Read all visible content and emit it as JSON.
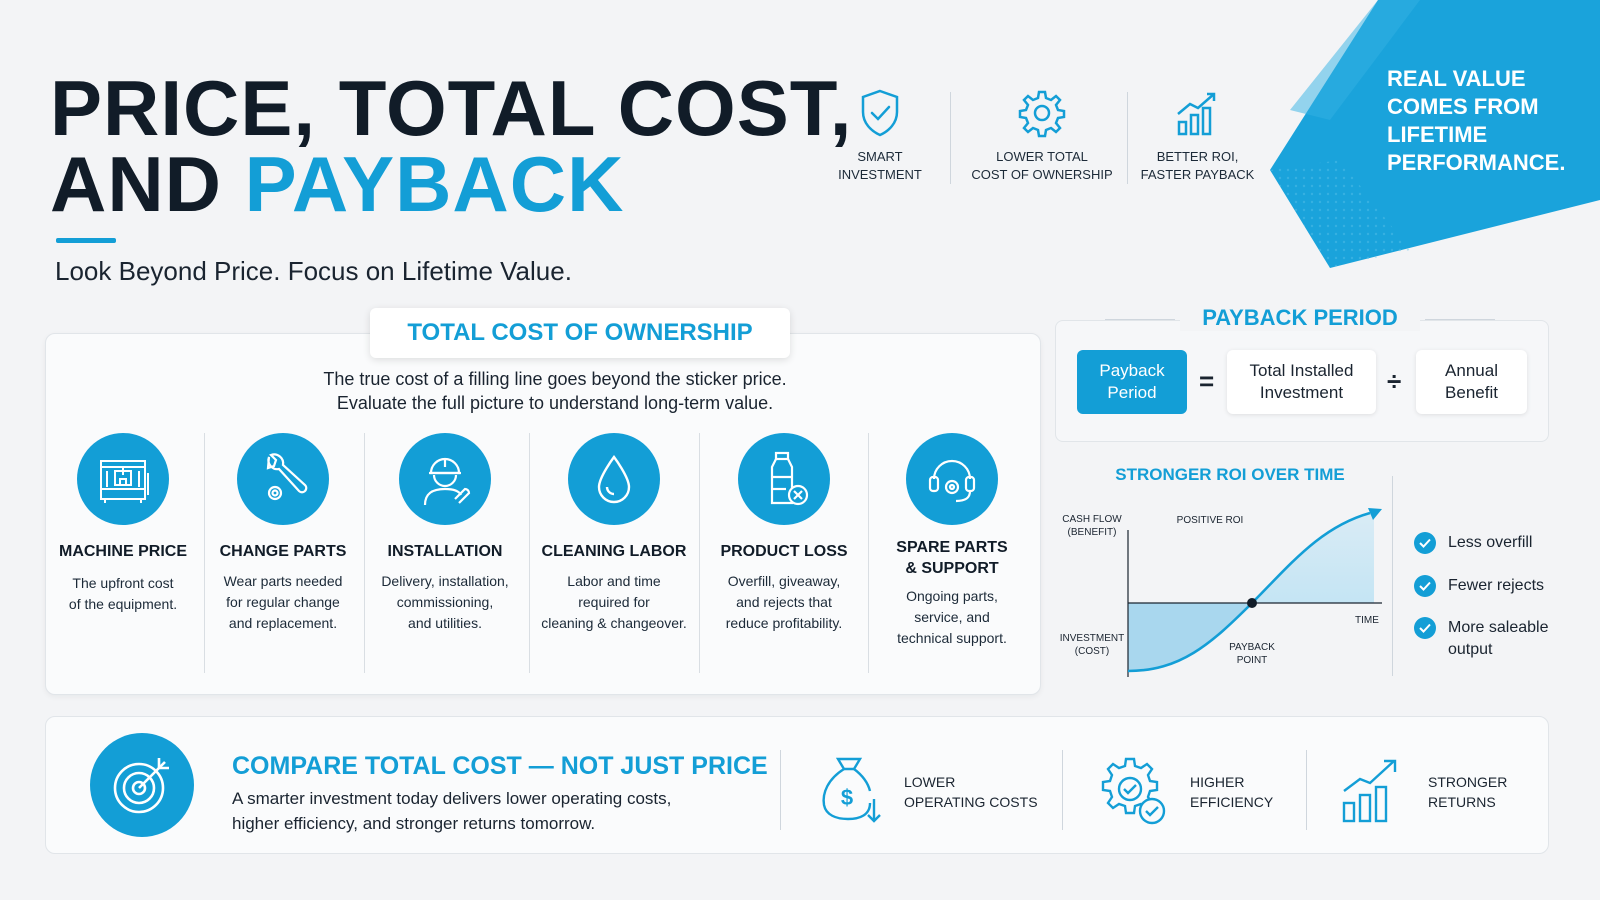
{
  "header": {
    "title_line1": "PRICE, TOTAL COST,",
    "title_line2_prefix": "AND ",
    "title_line2_accent": "PAYBACK",
    "subtitle": "Look Beyond Price. Focus on Lifetime Value."
  },
  "top_features": [
    {
      "icon": "shield-check-icon",
      "line1": "SMART",
      "line2": "INVESTMENT"
    },
    {
      "icon": "gear-icon",
      "line1": "LOWER TOTAL",
      "line2": "COST OF OWNERSHIP"
    },
    {
      "icon": "growth-chart-icon",
      "line1": "BETTER ROI,",
      "line2": "FASTER PAYBACK"
    }
  ],
  "banner": {
    "lines": [
      "REAL VALUE",
      "COMES FROM",
      "LIFETIME",
      "PERFORMANCE."
    ]
  },
  "tco": {
    "tag": "TOTAL COST OF OWNERSHIP",
    "desc_line1": "The true cost of a filling line goes beyond the sticker price.",
    "desc_line2": "Evaluate the full picture to understand long-term value.",
    "items": [
      {
        "icon": "filling-machine-icon",
        "title_lines": [
          "MACHINE PRICE"
        ],
        "desc_lines": [
          "The upfront cost",
          "of the equipment."
        ]
      },
      {
        "icon": "wrench-gear-icon",
        "title_lines": [
          "CHANGE PARTS"
        ],
        "desc_lines": [
          "Wear parts needed",
          "for regular change",
          "and replacement."
        ]
      },
      {
        "icon": "technician-icon",
        "title_lines": [
          "INSTALLATION"
        ],
        "desc_lines": [
          "Delivery, installation,",
          "commissioning,",
          "and utilities."
        ]
      },
      {
        "icon": "water-drop-icon",
        "title_lines": [
          "CLEANING LABOR"
        ],
        "desc_lines": [
          "Labor and time",
          "required for",
          "cleaning & changeover."
        ]
      },
      {
        "icon": "bottle-reject-icon",
        "title_lines": [
          "PRODUCT LOSS"
        ],
        "desc_lines": [
          "Overfill, giveaway,",
          "and rejects that",
          "reduce profitability."
        ]
      },
      {
        "icon": "headset-support-icon",
        "title_lines": [
          "SPARE PARTS",
          "& SUPPORT"
        ],
        "desc_lines": [
          "Ongoing parts,",
          "service, and",
          "technical support."
        ]
      }
    ]
  },
  "payback": {
    "title": "PAYBACK PERIOD",
    "result_line1": "Payback",
    "result_line2": "Period",
    "equals": "=",
    "numerator_line1": "Total Installed",
    "numerator_line2": "Investment",
    "divide": "÷",
    "denominator_line1": "Annual",
    "denominator_line2": "Benefit"
  },
  "roi": {
    "title": "STRONGER ROI OVER TIME",
    "y_top_line1": "CASH FLOW",
    "y_top_line2": "(BENEFIT)",
    "positive_roi": "POSITIVE ROI",
    "time": "TIME",
    "y_bottom_line1": "INVESTMENT",
    "y_bottom_line2": "(COST)",
    "payback_line1": "PAYBACK",
    "payback_line2": "POINT",
    "checks": [
      {
        "icon": "check-icon",
        "lines": [
          "Less overfill"
        ]
      },
      {
        "icon": "check-icon",
        "lines": [
          "Fewer rejects"
        ]
      },
      {
        "icon": "check-icon",
        "lines": [
          "More saleable",
          "output"
        ]
      }
    ]
  },
  "compare": {
    "icon": "target-icon",
    "title": "COMPARE TOTAL COST — NOT JUST PRICE",
    "desc_line1": "A smarter investment today delivers lower operating costs,",
    "desc_line2": "higher efficiency, and stronger returns tomorrow.",
    "benefits": [
      {
        "icon": "money-bag-down-icon",
        "line1": "LOWER",
        "line2": "OPERATING COSTS"
      },
      {
        "icon": "gear-check-icon",
        "line1": "HIGHER",
        "line2": "EFFICIENCY"
      },
      {
        "icon": "bar-chart-up-icon",
        "line1": "STRONGER",
        "line2": "RETURNS"
      }
    ]
  },
  "colors": {
    "accent": "#139ed6",
    "dark": "#111c28",
    "background": "#f3f4f6"
  }
}
